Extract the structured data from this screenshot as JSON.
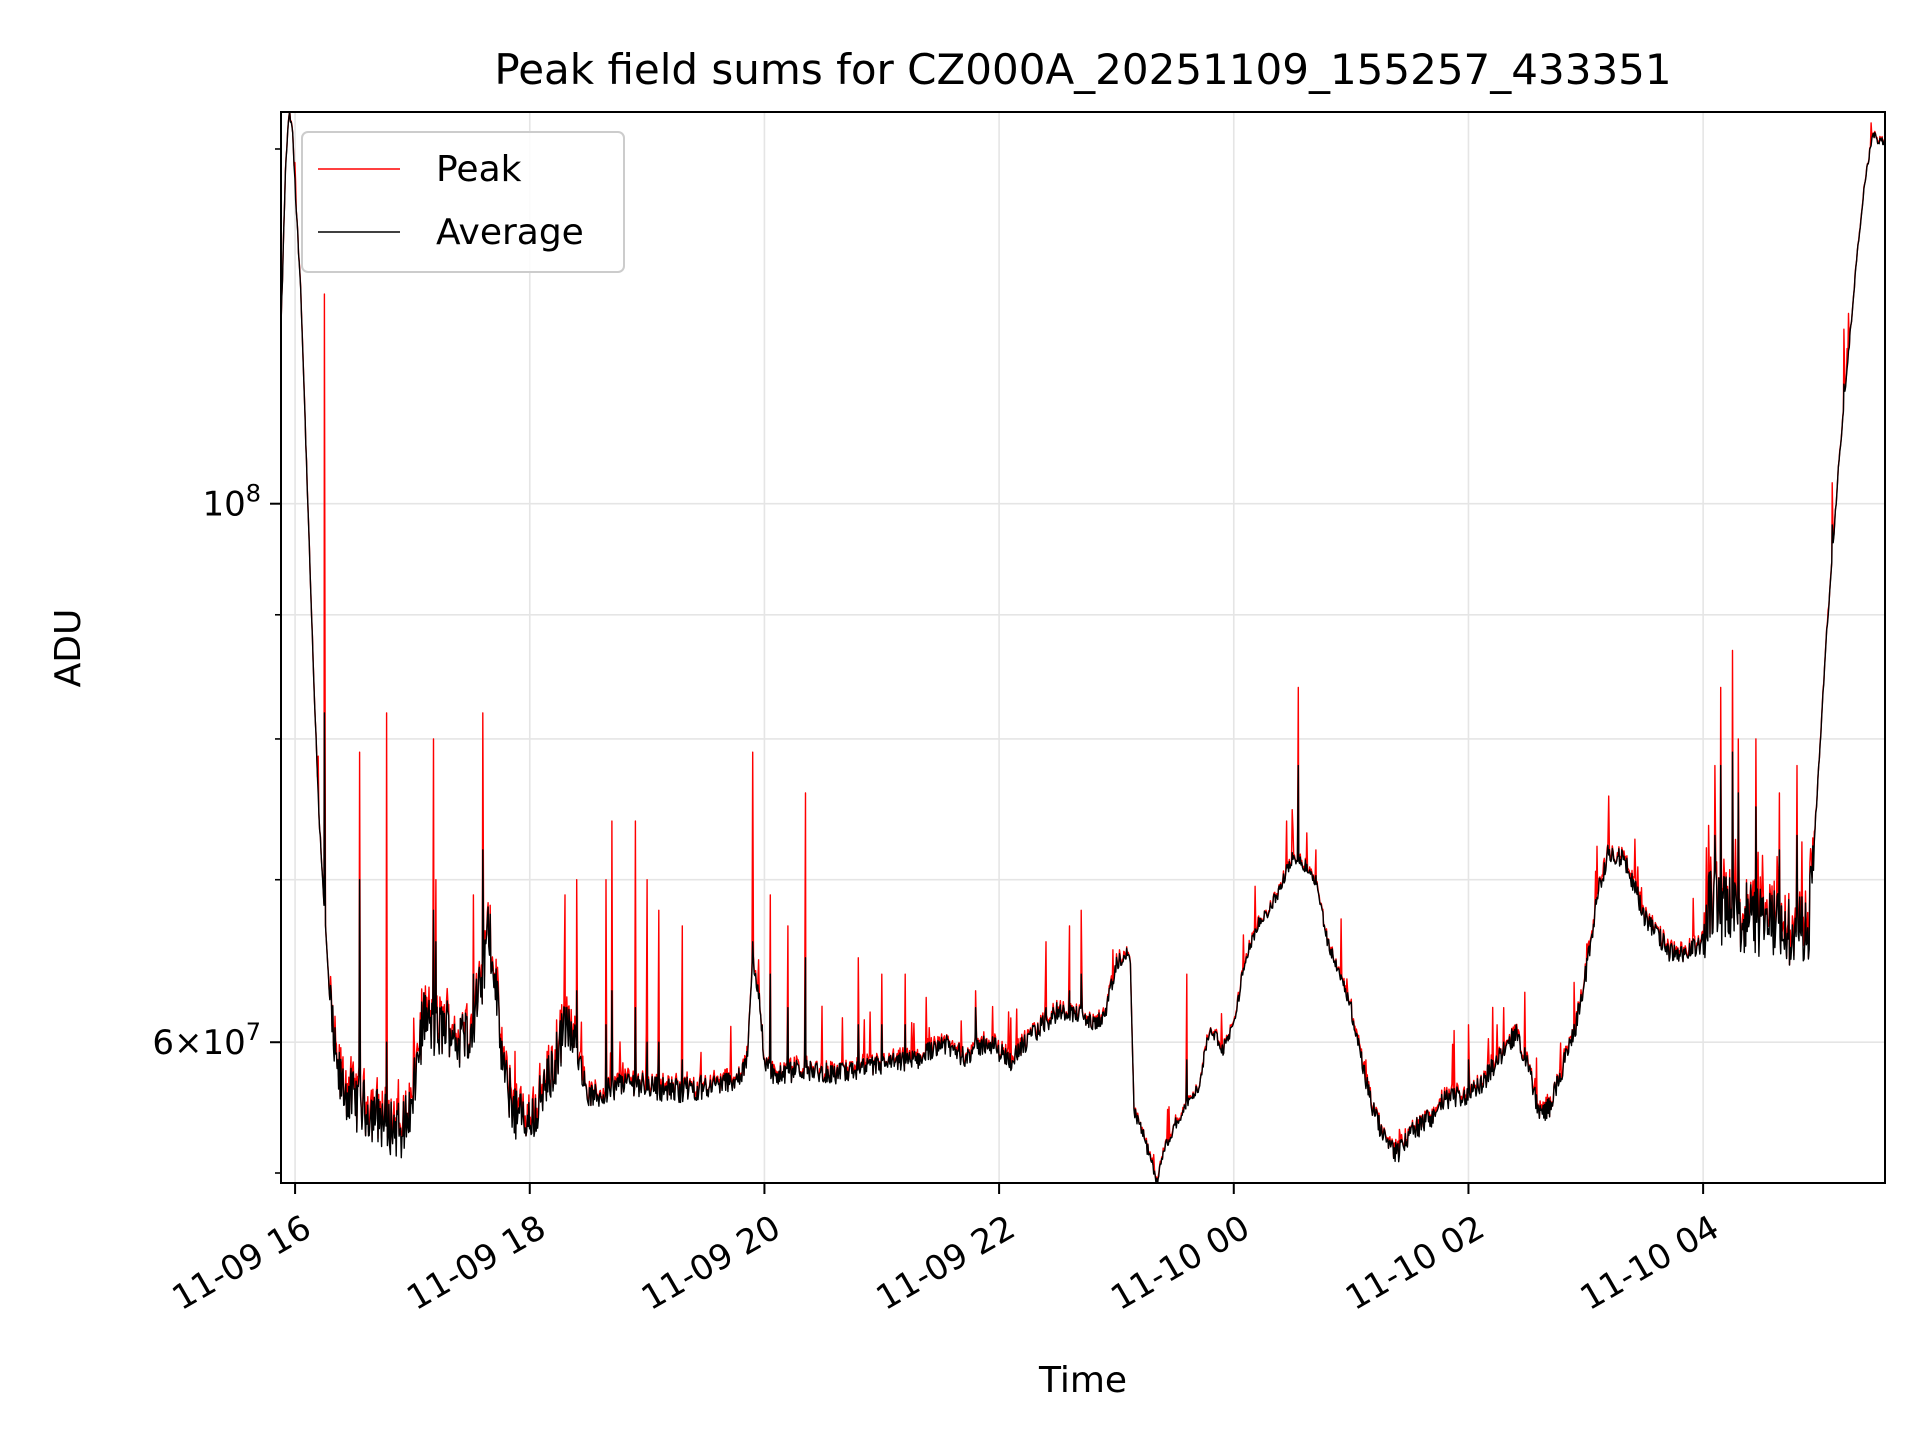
{
  "chart_data": {
    "type": "line",
    "title": "Peak field sums for CZ000A_20251109_155257_433351",
    "xlabel": "Time",
    "ylabel": "ADU",
    "yscale": "log",
    "xlim": [
      -0.12,
      13.55
    ],
    "ylim": [
      52500000,
      145000000
    ],
    "grid": true,
    "legend_position": "top-left",
    "colors": {
      "peak": "#ff0000",
      "average": "#000000",
      "grid": "#e5e5e5",
      "axes": "#000000"
    },
    "x_ticks": [
      {
        "x": 0,
        "label": "11-09 16"
      },
      {
        "x": 2,
        "label": "11-09 18"
      },
      {
        "x": 4,
        "label": "11-09 20"
      },
      {
        "x": 6,
        "label": "11-09 22"
      },
      {
        "x": 8,
        "label": "11-10 00"
      },
      {
        "x": 10,
        "label": "11-10 02"
      },
      {
        "x": 12,
        "label": "11-10 04"
      }
    ],
    "y_major_ticks": [
      {
        "value": 60000000,
        "base": "6",
        "exp": "7"
      },
      {
        "value": 100000000,
        "base": "10",
        "exp": "8"
      }
    ],
    "y_minor_ticks": [
      70000000,
      80000000,
      90000000
    ],
    "series": [
      {
        "name": "Peak",
        "color": "#ff0000"
      },
      {
        "name": "Average",
        "color": "#000000"
      }
    ],
    "baseline": [
      [
        -0.12,
        118000000
      ],
      [
        -0.08,
        138000000
      ],
      [
        -0.05,
        145000000
      ],
      [
        -0.02,
        142000000
      ],
      [
        0.0,
        135000000
      ],
      [
        0.05,
        122000000
      ],
      [
        0.1,
        103000000
      ],
      [
        0.15,
        87000000
      ],
      [
        0.2,
        75000000
      ],
      [
        0.25,
        68000000
      ],
      [
        0.3,
        62000000
      ],
      [
        0.35,
        58500000
      ],
      [
        0.4,
        57500000
      ],
      [
        0.5,
        56800000
      ],
      [
        0.6,
        56300000
      ],
      [
        0.7,
        56000000
      ],
      [
        0.8,
        55500000
      ],
      [
        0.9,
        55200000
      ],
      [
        1.0,
        56500000
      ],
      [
        1.05,
        59500000
      ],
      [
        1.1,
        61500000
      ],
      [
        1.2,
        60500000
      ],
      [
        1.3,
        61000000
      ],
      [
        1.4,
        60000000
      ],
      [
        1.5,
        61000000
      ],
      [
        1.6,
        63500000
      ],
      [
        1.65,
        67000000
      ],
      [
        1.7,
        64000000
      ],
      [
        1.75,
        60000000
      ],
      [
        1.8,
        57500000
      ],
      [
        1.9,
        56000000
      ],
      [
        2.0,
        55500000
      ],
      [
        2.1,
        57000000
      ],
      [
        2.2,
        58500000
      ],
      [
        2.3,
        61000000
      ],
      [
        2.4,
        59500000
      ],
      [
        2.5,
        57000000
      ],
      [
        2.6,
        57000000
      ],
      [
        2.8,
        57800000
      ],
      [
        3.0,
        57600000
      ],
      [
        3.2,
        57300000
      ],
      [
        3.5,
        57500000
      ],
      [
        3.8,
        58000000
      ],
      [
        3.85,
        59000000
      ],
      [
        3.9,
        64500000
      ],
      [
        3.95,
        63000000
      ],
      [
        4.0,
        59000000
      ],
      [
        4.1,
        58000000
      ],
      [
        4.3,
        58500000
      ],
      [
        4.6,
        58200000
      ],
      [
        5.0,
        58700000
      ],
      [
        5.3,
        59000000
      ],
      [
        5.5,
        60000000
      ],
      [
        5.7,
        59200000
      ],
      [
        5.9,
        60000000
      ],
      [
        6.1,
        59000000
      ],
      [
        6.3,
        60500000
      ],
      [
        6.5,
        61800000
      ],
      [
        6.7,
        61600000
      ],
      [
        6.8,
        61000000
      ],
      [
        6.9,
        61500000
      ],
      [
        6.95,
        63000000
      ],
      [
        7.0,
        64500000
      ],
      [
        7.05,
        65000000
      ],
      [
        7.1,
        65200000
      ],
      [
        7.12,
        64500000
      ],
      [
        7.15,
        56200000
      ],
      [
        7.2,
        55500000
      ],
      [
        7.3,
        53500000
      ],
      [
        7.35,
        52500000
      ],
      [
        7.4,
        54000000
      ],
      [
        7.5,
        55500000
      ],
      [
        7.6,
        56500000
      ],
      [
        7.7,
        57500000
      ],
      [
        7.8,
        61000000
      ],
      [
        7.9,
        59500000
      ],
      [
        8.0,
        61000000
      ],
      [
        8.1,
        65000000
      ],
      [
        8.2,
        67000000
      ],
      [
        8.3,
        68000000
      ],
      [
        8.4,
        69500000
      ],
      [
        8.5,
        71500000
      ],
      [
        8.6,
        71000000
      ],
      [
        8.7,
        70000000
      ],
      [
        8.8,
        66000000
      ],
      [
        8.9,
        64000000
      ],
      [
        9.0,
        62000000
      ],
      [
        9.1,
        58500000
      ],
      [
        9.2,
        56000000
      ],
      [
        9.3,
        54500000
      ],
      [
        9.4,
        54000000
      ],
      [
        9.5,
        55000000
      ],
      [
        9.6,
        55500000
      ],
      [
        9.7,
        56000000
      ],
      [
        9.8,
        56800000
      ],
      [
        9.9,
        57000000
      ],
      [
        10.0,
        57000000
      ],
      [
        10.1,
        57500000
      ],
      [
        10.2,
        58500000
      ],
      [
        10.3,
        59500000
      ],
      [
        10.4,
        60500000
      ],
      [
        10.5,
        59000000
      ],
      [
        10.6,
        56000000
      ],
      [
        10.7,
        56500000
      ],
      [
        10.8,
        58500000
      ],
      [
        10.9,
        60500000
      ],
      [
        11.0,
        64000000
      ],
      [
        11.1,
        69000000
      ],
      [
        11.2,
        72000000
      ],
      [
        11.3,
        71500000
      ],
      [
        11.4,
        70000000
      ],
      [
        11.5,
        67500000
      ],
      [
        11.6,
        66500000
      ],
      [
        11.7,
        65500000
      ],
      [
        11.8,
        65000000
      ],
      [
        11.9,
        65500000
      ],
      [
        12.0,
        66000000
      ],
      [
        12.05,
        68500000
      ],
      [
        12.2,
        68000000
      ],
      [
        12.4,
        67500000
      ],
      [
        12.6,
        67000000
      ],
      [
        12.8,
        66800000
      ],
      [
        12.9,
        67000000
      ],
      [
        12.95,
        73000000
      ],
      [
        13.0,
        80000000
      ],
      [
        13.05,
        88000000
      ],
      [
        13.1,
        95000000
      ],
      [
        13.15,
        103000000
      ],
      [
        13.2,
        110000000
      ],
      [
        13.25,
        117000000
      ],
      [
        13.3,
        125000000
      ],
      [
        13.35,
        132000000
      ],
      [
        13.4,
        138000000
      ],
      [
        13.45,
        142000000
      ],
      [
        13.5,
        141000000
      ],
      [
        13.55,
        141000000
      ]
    ],
    "noise_segments": [
      [
        0.3,
        1.9,
        0.028
      ],
      [
        1.9,
        2.4,
        0.025
      ],
      [
        2.4,
        3.5,
        0.012
      ],
      [
        3.5,
        6.5,
        0.01
      ],
      [
        6.5,
        7.1,
        0.008
      ],
      [
        7.15,
        8.0,
        0.006
      ],
      [
        8.0,
        9.0,
        0.006
      ],
      [
        9.0,
        10.9,
        0.01
      ],
      [
        10.9,
        11.5,
        0.01
      ],
      [
        11.5,
        12.0,
        0.01
      ],
      [
        12.0,
        12.95,
        0.035
      ]
    ],
    "spikes": [
      [
        0.25,
        122000000,
        82000000
      ],
      [
        0.55,
        79000000,
        70000000
      ],
      [
        0.78,
        82000000,
        60000000
      ],
      [
        1.18,
        80000000,
        68000000
      ],
      [
        1.2,
        70000000,
        66000000
      ],
      [
        1.6,
        82000000,
        72000000
      ],
      [
        1.52,
        69000000,
        64000000
      ],
      [
        2.3,
        69000000,
        62000000
      ],
      [
        2.4,
        70000000,
        63000000
      ],
      [
        2.65,
        70000000,
        61000000
      ],
      [
        2.7,
        74000000,
        63000000
      ],
      [
        2.9,
        74000000,
        62000000
      ],
      [
        3.0,
        70000000,
        60000000
      ],
      [
        3.1,
        68000000,
        60000000
      ],
      [
        3.3,
        67000000,
        59000000
      ],
      [
        3.9,
        79000000,
        66000000
      ],
      [
        4.05,
        69000000,
        64000000
      ],
      [
        4.35,
        76000000,
        65000000
      ],
      [
        4.2,
        67000000,
        62000000
      ],
      [
        4.8,
        65000000,
        61000000
      ],
      [
        5.0,
        64000000,
        61000000
      ],
      [
        5.2,
        64000000,
        61000000
      ],
      [
        5.8,
        63000000,
        62000000
      ],
      [
        6.4,
        66000000,
        62000000
      ],
      [
        6.6,
        67000000,
        63000000
      ],
      [
        6.7,
        68000000,
        64000000
      ],
      [
        7.6,
        64000000,
        59000000
      ],
      [
        8.45,
        74000000,
        71000000
      ],
      [
        8.55,
        84000000,
        78000000
      ],
      [
        8.7,
        72000000,
        70000000
      ],
      [
        10.0,
        61000000,
        59000000
      ],
      [
        10.3,
        62000000,
        60000000
      ],
      [
        10.9,
        63500000,
        61000000
      ],
      [
        12.1,
        78000000,
        73000000
      ],
      [
        12.15,
        84000000,
        78000000
      ],
      [
        12.25,
        87000000,
        79000000
      ],
      [
        12.3,
        80000000,
        76000000
      ],
      [
        12.45,
        80000000,
        75000000
      ],
      [
        12.65,
        76000000,
        72000000
      ],
      [
        12.8,
        78000000,
        73000000
      ],
      [
        13.1,
        102000000,
        98000000
      ],
      [
        13.2,
        118000000,
        112000000
      ]
    ]
  }
}
